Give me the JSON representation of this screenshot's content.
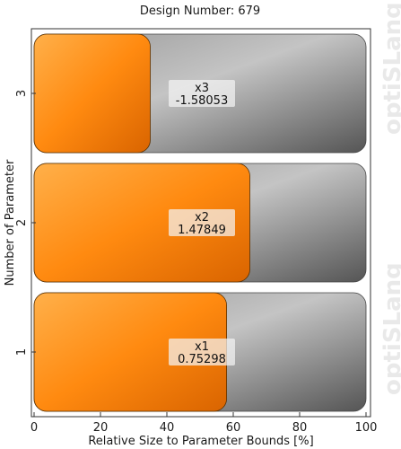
{
  "chart_data": {
    "type": "bar",
    "orientation": "horizontal",
    "title": "Design Number: 679",
    "xlabel": "Relative Size to Parameter Bounds [%]",
    "ylabel": "Number of Parameter",
    "xlim": [
      0,
      100
    ],
    "x_ticks": [
      "0",
      "20",
      "40",
      "60",
      "80",
      "100"
    ],
    "categories": [
      "1",
      "2",
      "3"
    ],
    "bars": [
      {
        "category": "1",
        "name": "x1",
        "value_label": "0.75298",
        "relative_percent": 58
      },
      {
        "category": "2",
        "name": "x2",
        "value_label": "1.47849",
        "relative_percent": 65
      },
      {
        "category": "3",
        "name": "x3",
        "value_label": "-1.58053",
        "relative_percent": 35
      }
    ],
    "colors": {
      "fill_orange_light": "#ffa63a",
      "fill_orange_dark": "#e86e00",
      "bound_gray_light": "#c9c9c9",
      "bound_gray_dark": "#5f5f5f",
      "label_box": "#f2f2f2"
    }
  },
  "watermark": "optiSLang"
}
